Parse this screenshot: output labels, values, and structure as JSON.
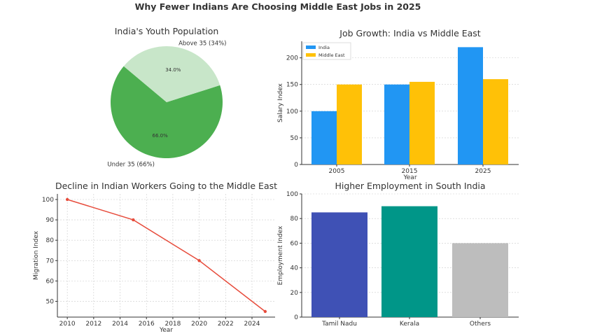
{
  "suptitle": "Why Fewer Indians Are Choosing Middle East Jobs in 2025",
  "chart_data": [
    {
      "type": "pie",
      "title": "India's Youth Population",
      "labels": [
        "Under 35 (66%)",
        "Above 35 (34%)"
      ],
      "values": [
        66,
        34
      ],
      "pct_labels": [
        "66.0%",
        "34.0%"
      ],
      "colors": [
        "#4caf50",
        "#c8e6c9"
      ],
      "startangle": 140
    },
    {
      "type": "bar",
      "title": "Job Growth: India vs Middle East",
      "xlabel": "Year",
      "ylabel": "Salary Index",
      "categories": [
        "2005",
        "2015",
        "2025"
      ],
      "series": [
        {
          "name": "India",
          "values": [
            100,
            150,
            220
          ],
          "color": "#2196f3"
        },
        {
          "name": "Middle East",
          "values": [
            150,
            155,
            160
          ],
          "color": "#ffc107"
        }
      ],
      "ylim": [
        0,
        231
      ],
      "yticks": [
        0,
        50,
        100,
        150,
        200
      ],
      "legend": "top-left",
      "grid": true
    },
    {
      "type": "line",
      "title": "Decline in Indian Workers Going to the Middle East",
      "xlabel": "Year",
      "ylabel": "Migration Index",
      "x": [
        2010,
        2015,
        2020,
        2025
      ],
      "y": [
        100,
        90,
        70,
        45
      ],
      "color": "#e74c3c",
      "xlim": [
        2009.25,
        2025.75
      ],
      "ylim": [
        42.25,
        102.75
      ],
      "xticks": [
        2010,
        2012,
        2014,
        2016,
        2018,
        2020,
        2022,
        2024
      ],
      "yticks": [
        50,
        60,
        70,
        80,
        90,
        100
      ],
      "grid": true
    },
    {
      "type": "bar",
      "title": "Higher Employment in South India",
      "ylabel": "Employment Index",
      "categories": [
        "Tamil Nadu",
        "Kerala",
        "Others"
      ],
      "values": [
        85,
        90,
        60
      ],
      "colors": [
        "#3f51b5",
        "#009688",
        "#bdbdbd"
      ],
      "ylim": [
        0,
        100
      ],
      "yticks": [
        0,
        20,
        40,
        60,
        80,
        100
      ],
      "grid": true
    }
  ]
}
